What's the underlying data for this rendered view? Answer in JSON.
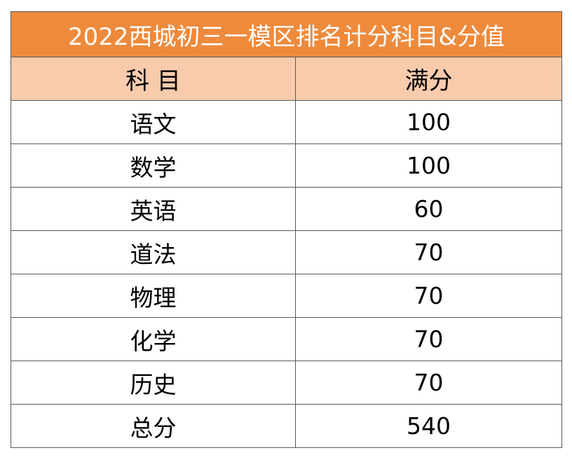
{
  "table": {
    "title": "2022西城初三一模区排名计分科目&分值",
    "headers": {
      "subject": "科 目",
      "score": "满分"
    },
    "rows": [
      {
        "subject": "语文",
        "score": "100"
      },
      {
        "subject": "数学",
        "score": "100"
      },
      {
        "subject": "英语",
        "score": "60"
      },
      {
        "subject": "道法",
        "score": "70"
      },
      {
        "subject": "物理",
        "score": "70"
      },
      {
        "subject": "化学",
        "score": "70"
      },
      {
        "subject": "历史",
        "score": "70"
      },
      {
        "subject": "总分",
        "score": "540"
      }
    ],
    "colors": {
      "title_bg": "#ee8a3c",
      "header_bg": "#f8cbad",
      "border": "#595959"
    }
  }
}
